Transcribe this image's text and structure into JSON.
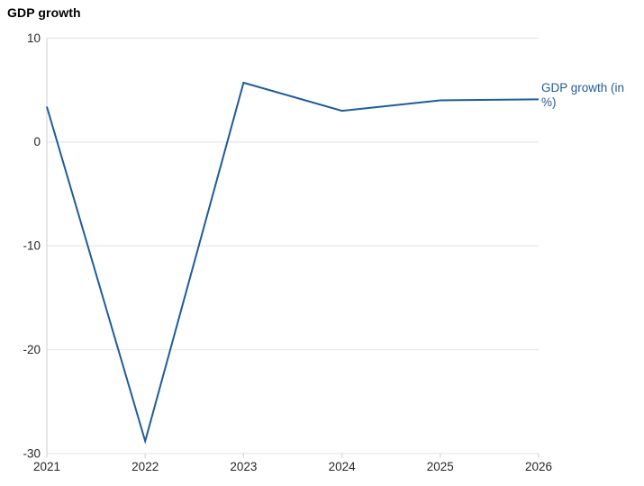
{
  "title": "GDP growth",
  "series_end_label": "GDP growth (in %)",
  "colors": {
    "line": "#1f5c99",
    "series_label_text": "#1f5c99",
    "grid": "#e8e8e8",
    "axis": "#d9d9d9",
    "tick_text": "#262626",
    "title_text": "#000000",
    "background": "#ffffff"
  },
  "chart_data": {
    "type": "line",
    "title": "GDP growth",
    "categories": [
      "2021",
      "2022",
      "2023",
      "2024",
      "2025",
      "2026"
    ],
    "series": [
      {
        "name": "GDP growth (in %)",
        "values": [
          3.4,
          -28.8,
          5.7,
          3.0,
          4.0,
          4.1
        ]
      }
    ],
    "xlabel": "",
    "ylabel": "",
    "ylim": [
      -30,
      10
    ],
    "yticks": [
      10,
      0,
      -10,
      -20,
      -30
    ],
    "grid": true,
    "legend_position": "end-of-line-right",
    "line_width": 2
  }
}
